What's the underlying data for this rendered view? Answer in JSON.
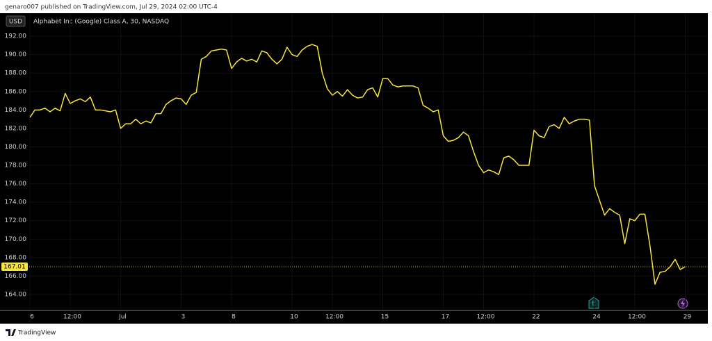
{
  "header": "genaro007 published on TradingView.com, Jul 29, 2024 02:00 UTC-4",
  "footer": "TradingView",
  "chart_data": {
    "type": "line",
    "title": "Alphabet Inc (Google) Class A, 30, NASDAQ",
    "currency": "USD",
    "event_label": "E",
    "last_price": 167.01,
    "categories": [
      "6",
      null,
      null,
      null,
      null,
      null,
      null,
      null,
      "12:00",
      null,
      null,
      null,
      null,
      null,
      null,
      null,
      null,
      null,
      "Jul",
      null,
      null,
      null,
      null,
      null,
      null,
      null,
      null,
      null,
      null,
      null,
      "3",
      null,
      null,
      null,
      null,
      null,
      null,
      null,
      null,
      null,
      "8",
      null,
      null,
      null,
      null,
      null,
      null,
      null,
      null,
      null,
      null,
      null,
      "10",
      null,
      null,
      null,
      null,
      null,
      null,
      null,
      "12:00",
      null,
      null,
      null,
      null,
      null,
      null,
      null,
      null,
      null,
      "15",
      null,
      null,
      null,
      null,
      null,
      null,
      null,
      null,
      null,
      null,
      null,
      "17",
      null,
      null,
      null,
      null,
      null,
      null,
      null,
      "12:00",
      null,
      null,
      null,
      null,
      null,
      null,
      null,
      null,
      null,
      "22",
      null,
      null,
      null,
      null,
      null,
      null,
      null,
      null,
      null,
      null,
      null,
      "24",
      null,
      null,
      null,
      null,
      null,
      null,
      null,
      "12:00",
      null,
      null,
      null,
      null,
      null,
      null,
      null,
      null,
      null,
      "29"
    ],
    "series": [
      {
        "color": "#f7e53b",
        "values": [
          183.2,
          184.0,
          184.0,
          184.2,
          183.8,
          184.2,
          183.9,
          185.8,
          184.7,
          185.0,
          185.2,
          184.9,
          185.4,
          184.0,
          184.0,
          183.9,
          183.8,
          184.0,
          182.0,
          182.5,
          182.5,
          183.0,
          182.5,
          182.8,
          182.6,
          183.6,
          183.6,
          184.6,
          185.0,
          185.3,
          185.2,
          184.6,
          185.6,
          185.9,
          189.5,
          189.8,
          190.4,
          190.5,
          190.6,
          190.5,
          188.5,
          189.2,
          189.6,
          189.3,
          189.5,
          189.2,
          190.4,
          190.2,
          189.5,
          189.0,
          189.5,
          190.8,
          190.0,
          189.8,
          190.5,
          190.9,
          191.1,
          190.9,
          188.0,
          186.3,
          185.6,
          186.0,
          185.5,
          186.2,
          185.6,
          185.3,
          185.4,
          186.2,
          186.4,
          185.4,
          187.4,
          187.4,
          186.7,
          186.5,
          186.6,
          186.6,
          186.6,
          186.4,
          184.5,
          184.2,
          183.8,
          184.0,
          181.2,
          180.6,
          180.7,
          181.0,
          181.6,
          181.2,
          179.5,
          178.0,
          177.2,
          177.5,
          177.3,
          177.0,
          178.8,
          179.0,
          178.6,
          178.0,
          178.0,
          178.0,
          181.8,
          181.2,
          181.0,
          182.2,
          182.4,
          182.0,
          183.2,
          182.5,
          182.8,
          183.0,
          183.0,
          182.9,
          175.8,
          174.2,
          172.6,
          173.3,
          172.9,
          172.6,
          169.5,
          172.2,
          172.0,
          172.7,
          172.7,
          169.3,
          165.1,
          166.4,
          166.5,
          167.0,
          167.8,
          166.7,
          167.01
        ]
      }
    ],
    "ylim": [
      162.34,
      194.49
    ],
    "yticks": [
      {
        "value": 164,
        "label": "164.00"
      },
      {
        "value": 166,
        "label": "166.00"
      },
      {
        "value": 168,
        "label": "168.00"
      },
      {
        "value": 170,
        "label": "170.00"
      },
      {
        "value": 172,
        "label": "172.00"
      },
      {
        "value": 174,
        "label": "174.00"
      },
      {
        "value": 176,
        "label": "176.00"
      },
      {
        "value": 178,
        "label": "178.00"
      },
      {
        "value": 180,
        "label": "180.00"
      },
      {
        "value": 182,
        "label": "182.00"
      },
      {
        "value": 184,
        "label": "184.00"
      },
      {
        "value": 186,
        "label": "186.00"
      },
      {
        "value": 188,
        "label": "188.00"
      },
      {
        "value": 190,
        "label": "190.00"
      },
      {
        "value": 192,
        "label": "192.00"
      }
    ],
    "grid": true
  }
}
